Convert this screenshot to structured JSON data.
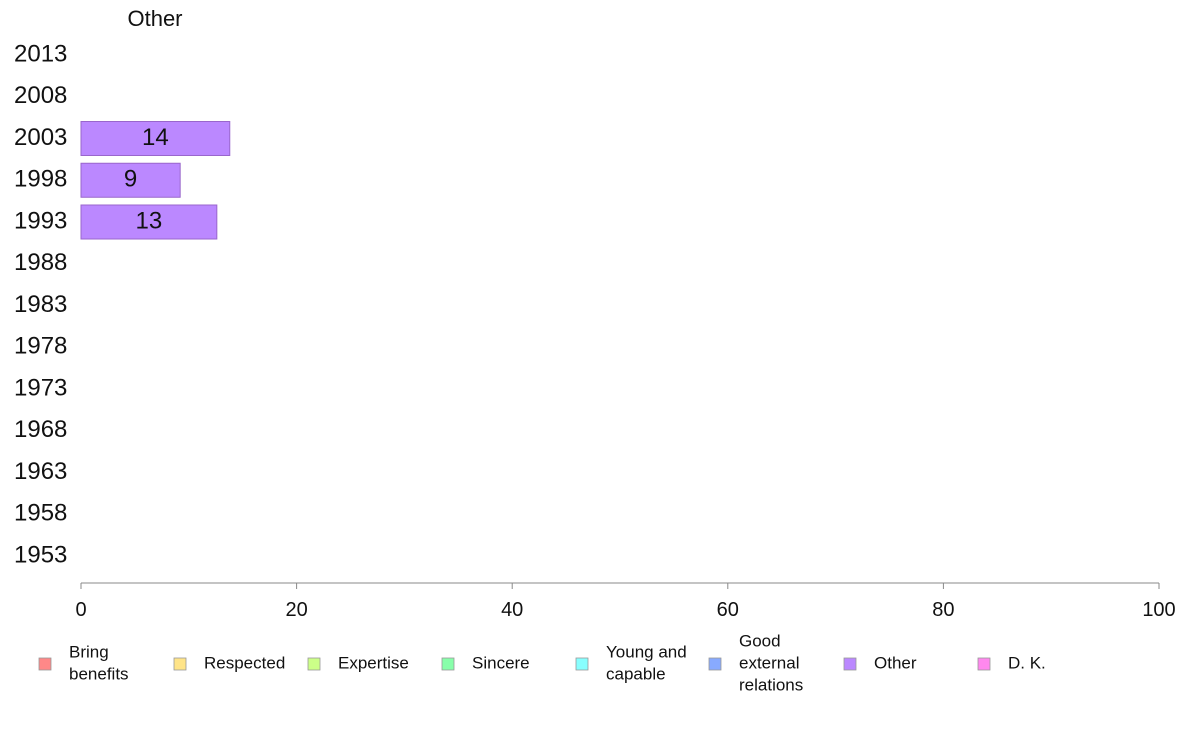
{
  "chart_data": {
    "type": "bar",
    "orientation": "horizontal",
    "title": "Other",
    "xlabel": "",
    "ylabel": "",
    "xlim": [
      0,
      100
    ],
    "xticks": [
      "0",
      "20",
      "40",
      "60",
      "80",
      "100"
    ],
    "categories": [
      "2013",
      "2008",
      "2003",
      "1998",
      "1993",
      "1988",
      "1983",
      "1978",
      "1973",
      "1968",
      "1963",
      "1958",
      "1953"
    ],
    "series": [
      {
        "name": "Other",
        "color": "#bb88ff",
        "values": [
          null,
          null,
          13.8,
          9.2,
          12.6,
          null,
          null,
          null,
          null,
          null,
          null,
          null,
          null
        ],
        "labels": [
          "",
          "",
          "14",
          "9",
          "13",
          "",
          "",
          "",
          "",
          "",
          "",
          "",
          ""
        ]
      }
    ],
    "grid": false,
    "legend_position": "bottom",
    "legend": [
      {
        "lines": [
          "Bring",
          "benefits"
        ],
        "color": "#ff8888"
      },
      {
        "lines": [
          "Respected"
        ],
        "color": "#ffe488"
      },
      {
        "lines": [
          "Expertise"
        ],
        "color": "#ccff88"
      },
      {
        "lines": [
          "Sincere"
        ],
        "color": "#88ffaa"
      },
      {
        "lines": [
          "Young and",
          "capable"
        ],
        "color": "#88ffff"
      },
      {
        "lines": [
          "Good",
          "external",
          "relations"
        ],
        "color": "#88aaff"
      },
      {
        "lines": [
          "Other"
        ],
        "color": "#bb88ff"
      },
      {
        "lines": [
          "D. K."
        ],
        "color": "#ff88ee"
      }
    ]
  }
}
